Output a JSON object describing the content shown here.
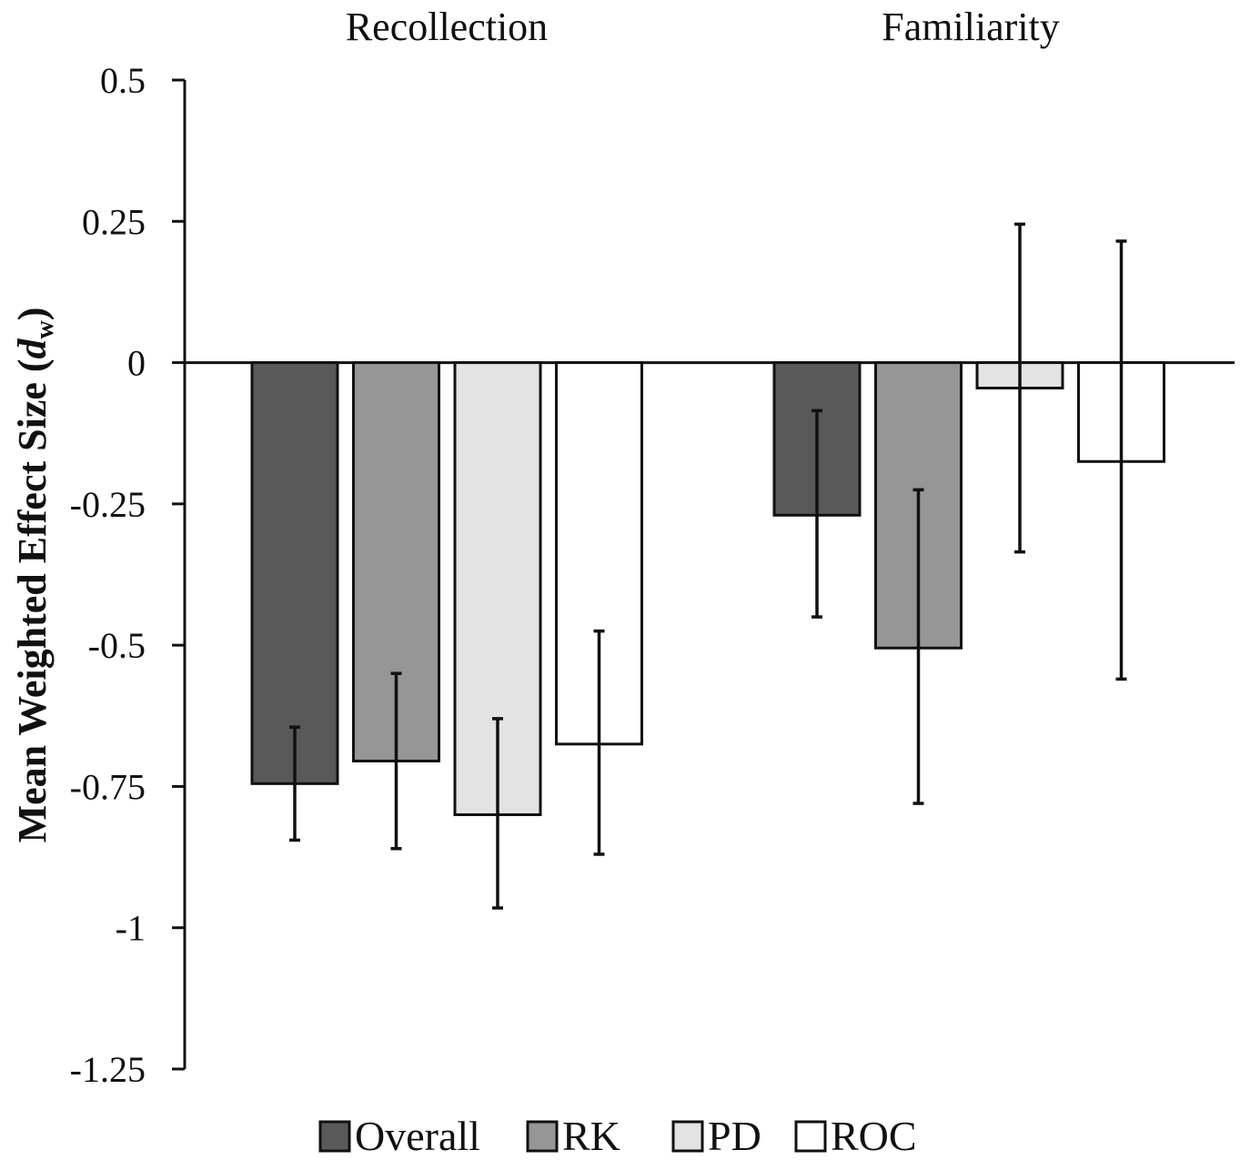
{
  "chart_data": {
    "type": "bar",
    "title": "",
    "xlabel": "",
    "ylabel": "Mean Weighted Effect Size (",
    "ylabel_symbol": "d",
    "ylabel_subscript": "w",
    "ylabel_suffix": ")",
    "ylim": [
      -1.25,
      0.5
    ],
    "yticks": [
      0.5,
      0.25,
      0,
      -0.25,
      -0.5,
      -0.75,
      -1,
      -1.25
    ],
    "ytick_labels": [
      "0.5",
      "0.25",
      "0",
      "-0.25",
      "-0.5",
      "-0.75",
      "-1",
      "-1.25"
    ],
    "categories": [
      "Recollection",
      "Familiarity"
    ],
    "grid": false,
    "legend_position": "bottom",
    "series": [
      {
        "name": "Overall",
        "color": "#595959",
        "values": [
          -0.745,
          -0.27
        ],
        "error_low": [
          -0.845,
          -0.45
        ],
        "error_high": [
          -0.645,
          -0.085
        ]
      },
      {
        "name": "RK",
        "color": "#969696",
        "values": [
          -0.705,
          -0.505
        ],
        "error_low": [
          -0.86,
          -0.78
        ],
        "error_high": [
          -0.55,
          -0.225
        ]
      },
      {
        "name": "PD",
        "color": "#e3e3e3",
        "values": [
          -0.8,
          -0.045
        ],
        "error_low": [
          -0.965,
          -0.335
        ],
        "error_high": [
          -0.63,
          0.245
        ]
      },
      {
        "name": "ROC",
        "color": "#ffffff",
        "values": [
          -0.675,
          -0.175
        ],
        "error_low": [
          -0.87,
          -0.56
        ],
        "error_high": [
          -0.475,
          0.215
        ]
      }
    ]
  }
}
